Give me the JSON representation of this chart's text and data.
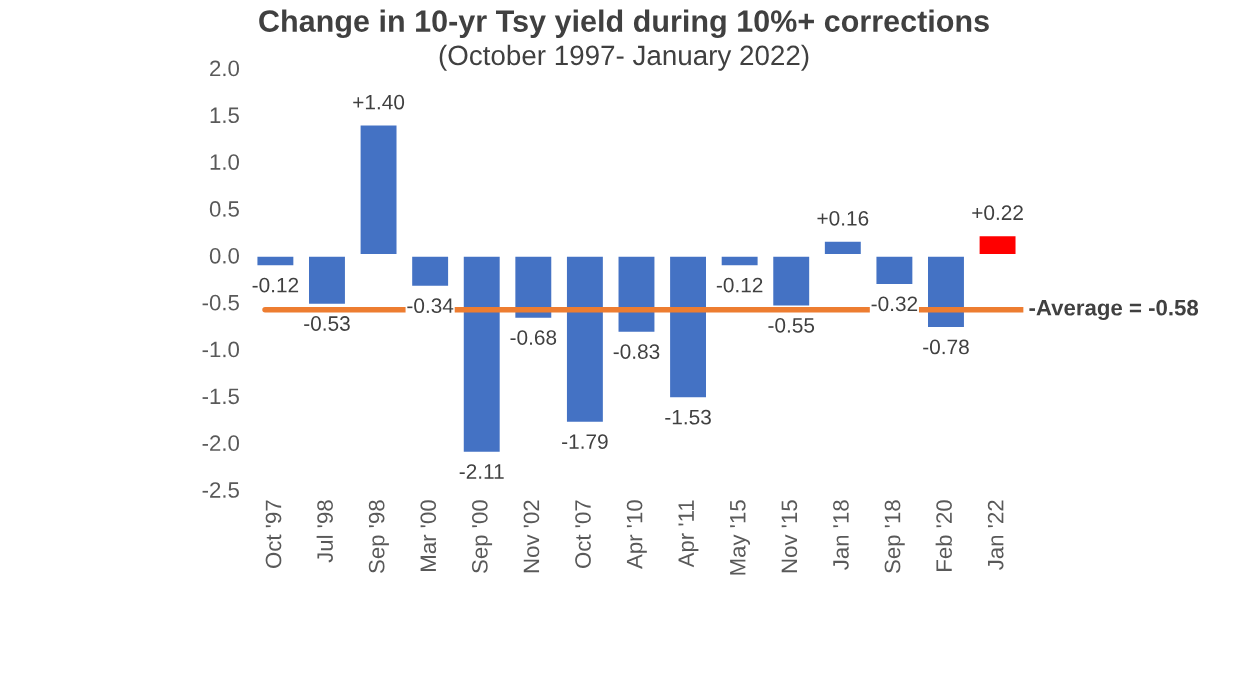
{
  "chart_data": {
    "type": "bar",
    "title": "Change in 10-yr Tsy yield during 10%+ corrections",
    "subtitle": "(October 1997- January 2022)",
    "categories": [
      "Oct '97",
      "Jul '98",
      "Sep '98",
      "Mar '00",
      "Sep '00",
      "Nov '02",
      "Oct '07",
      "Apr '10",
      "Apr '11",
      "May '15",
      "Nov '15",
      "Jan '18",
      "Sep '18",
      "Feb '20",
      "Jan '22"
    ],
    "values": [
      -0.12,
      -0.53,
      1.4,
      -0.34,
      -2.11,
      -0.68,
      -1.79,
      -0.83,
      -1.53,
      -0.12,
      -0.55,
      0.16,
      -0.32,
      -0.78,
      0.22
    ],
    "colors": [
      "#4472c4",
      "#4472c4",
      "#4472c4",
      "#4472c4",
      "#4472c4",
      "#4472c4",
      "#4472c4",
      "#4472c4",
      "#4472c4",
      "#4472c4",
      "#4472c4",
      "#4472c4",
      "#4472c4",
      "#4472c4",
      "#ff0000"
    ],
    "value_labels": [
      "-0.12",
      "-0.53",
      "+1.40",
      "-0.34",
      "-2.11",
      "-0.68",
      "-1.79",
      "-0.83",
      "-1.53",
      "-0.12",
      "-0.55",
      "+0.16",
      "-0.32",
      "-0.78",
      "+0.22"
    ],
    "ylim": [
      -2.5,
      2.0
    ],
    "yticks": [
      {
        "value": -2.5,
        "label": "-2.5"
      },
      {
        "value": -2.0,
        "label": "-2.0"
      },
      {
        "value": -1.5,
        "label": "-1.5"
      },
      {
        "value": -1.0,
        "label": "-1.0"
      },
      {
        "value": -0.5,
        "label": "-0.5"
      },
      {
        "value": 0.0,
        "label": "0.0"
      },
      {
        "value": 0.5,
        "label": "0.5"
      },
      {
        "value": 1.0,
        "label": "1.0"
      },
      {
        "value": 1.5,
        "label": "1.5"
      },
      {
        "value": 2.0,
        "label": "2.0"
      }
    ],
    "ref_lines": [
      {
        "axis": "y",
        "value": -0.58,
        "label": "-Average = -0.58",
        "color": "#ed7d31"
      }
    ],
    "grid": false,
    "legend": false
  }
}
